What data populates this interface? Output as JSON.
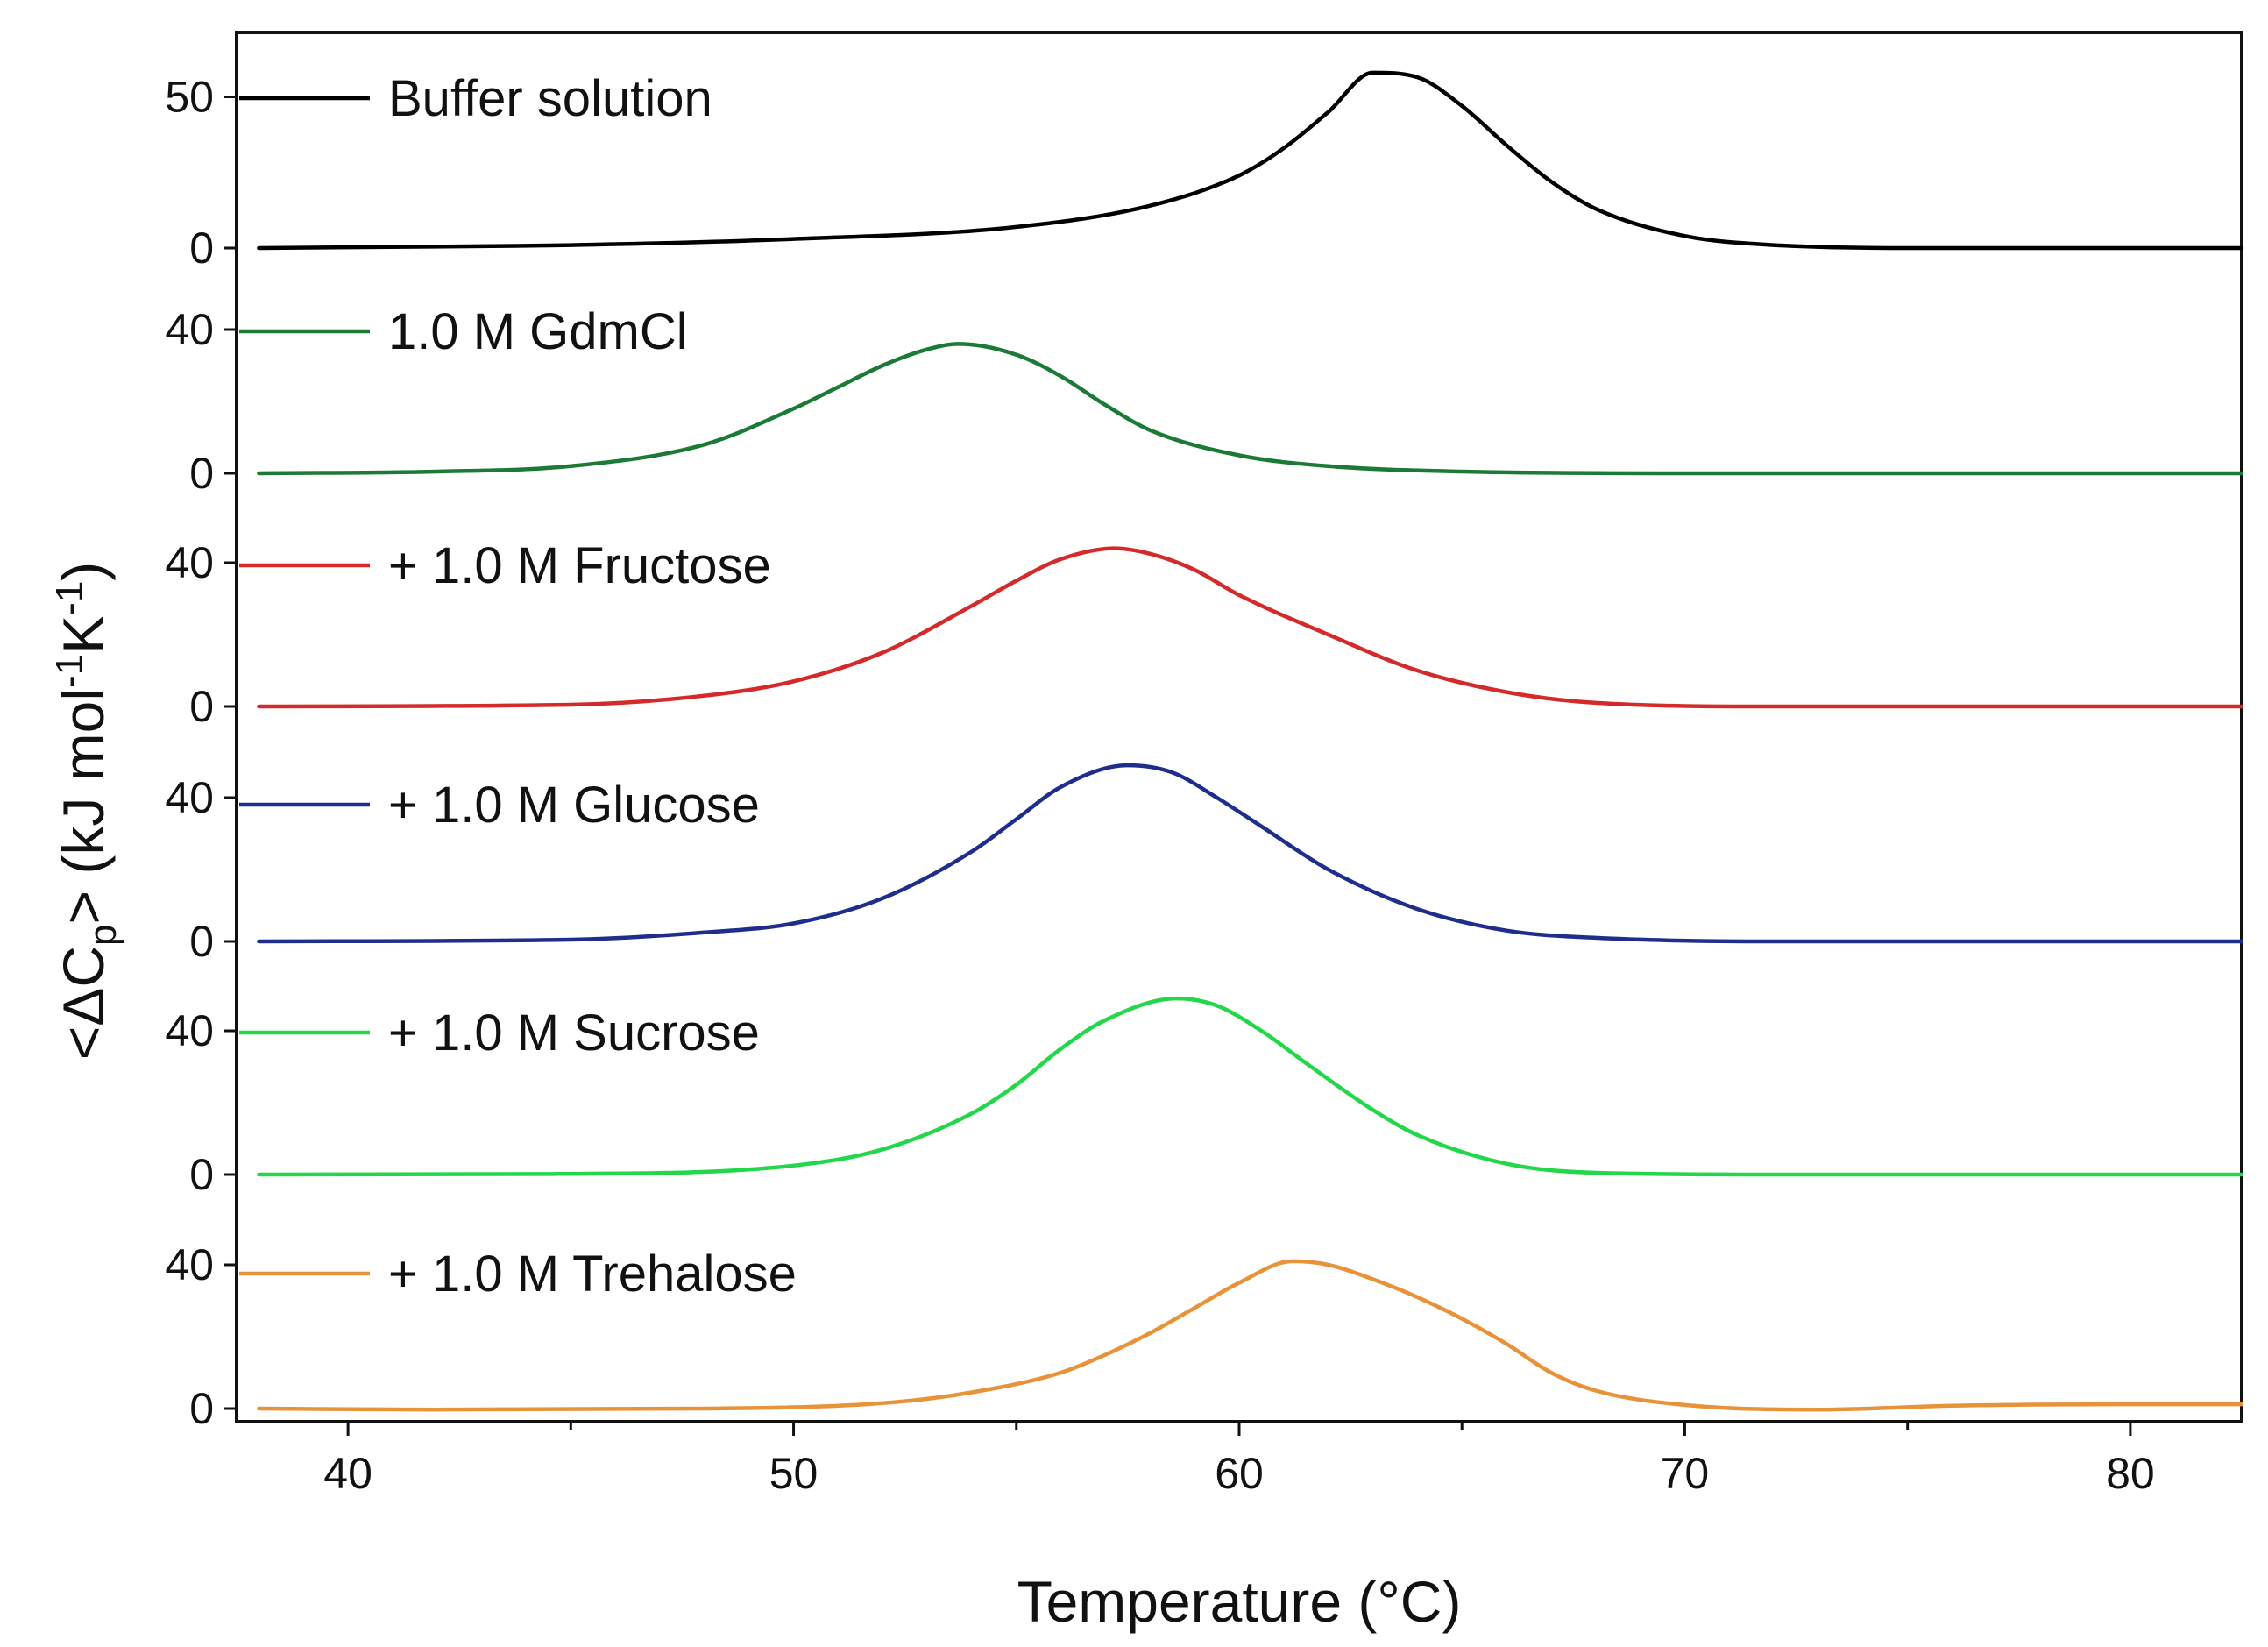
{
  "chart_data": {
    "type": "line",
    "title": "",
    "xlabel": "Temperature (°C)",
    "ylabel": "<ΔCp> (kJ mol-1K-1)",
    "ylabel_parts": {
      "open": "<ΔC",
      "sub": "p",
      "mid": "> (kJ mol",
      "sup1": "-1",
      "mid2": "K",
      "sup2": "-1",
      "close": ")"
    },
    "xlim": [
      37.5,
      82.5
    ],
    "x_ticks": [
      40,
      50,
      60,
      70,
      80
    ],
    "x_tick_labels": [
      "40",
      "50",
      "60",
      "70",
      "80"
    ],
    "grid": false,
    "legend_position": "left, inside each panel",
    "panels": [
      {
        "name": "Buffer solution",
        "label": "Buffer solution",
        "color": "#000000",
        "ylim": [
          0,
          60
        ],
        "y_ticks": [
          0,
          50
        ],
        "y_tick_labels": [
          "0",
          "50"
        ],
        "peak_temperature": 63.1,
        "peak_value": 59,
        "x": [
          38,
          45,
          50,
          55,
          58,
          60,
          61,
          62,
          63,
          64,
          65,
          66,
          67,
          68,
          70,
          72,
          75,
          80,
          82.5
        ],
        "y": [
          0,
          1.0,
          3.0,
          7.0,
          14.0,
          24.0,
          33.0,
          45.0,
          58.0,
          56.5,
          47.0,
          34.0,
          22.0,
          13.0,
          4.0,
          1.0,
          0,
          0,
          0
        ]
      },
      {
        "name": "1.0 M GdmCl",
        "label": "1.0 M GdmCl",
        "color": "#1b7a35",
        "ylim": [
          0,
          55
        ],
        "y_ticks": [
          0,
          40
        ],
        "y_tick_labels": [
          "0",
          "40"
        ],
        "peak_temperature": 53.7,
        "peak_value": 36,
        "x": [
          38,
          42,
          45,
          48,
          50,
          51,
          52,
          53,
          53.7,
          55,
          56,
          57,
          58,
          60,
          62,
          65,
          70,
          75,
          82.5
        ],
        "y": [
          0,
          0.5,
          2.0,
          8.0,
          18.0,
          24.0,
          30.0,
          34.5,
          36.0,
          33.0,
          27.0,
          19.0,
          12.0,
          5.0,
          2.0,
          0.5,
          0,
          0,
          0
        ]
      },
      {
        "name": "+ 1.0 M Fructose",
        "label": "+ 1.0 M Fructose",
        "color": "#d42a2a",
        "ylim": [
          0,
          55
        ],
        "y_ticks": [
          0,
          40
        ],
        "y_tick_labels": [
          "0",
          "40"
        ],
        "peak_temperature": 57.2,
        "peak_value": 44,
        "x": [
          38,
          45,
          48,
          50,
          52,
          54,
          55,
          56,
          57.2,
          58,
          59,
          60,
          62,
          64,
          66,
          68,
          72,
          78,
          82.5
        ],
        "y": [
          0,
          0.5,
          3.0,
          7.0,
          15.0,
          28.0,
          35.0,
          41.0,
          44.0,
          42.5,
          38.0,
          31.0,
          20.0,
          10.0,
          4.0,
          1.0,
          0,
          0,
          0
        ]
      },
      {
        "name": "+ 1.0 M Glucose",
        "label": "+ 1.0 M Glucose",
        "color": "#1f2e8c",
        "ylim": [
          0,
          55
        ],
        "y_ticks": [
          0,
          40
        ],
        "y_tick_labels": [
          "0",
          "40"
        ],
        "peak_temperature": 57.5,
        "peak_value": 49,
        "x": [
          38,
          45,
          48,
          50,
          52,
          54,
          55,
          56,
          57.5,
          58.5,
          59.5,
          60.5,
          62,
          64,
          66,
          68,
          72,
          78,
          82.5
        ],
        "y": [
          0,
          0.5,
          2.5,
          5.0,
          12.0,
          25.0,
          34.0,
          43.0,
          49.0,
          47.0,
          40.0,
          32.0,
          20.0,
          9.0,
          3.0,
          1.0,
          0,
          0,
          0
        ]
      },
      {
        "name": "+ 1.0 M Sucrose",
        "label": "+ 1.0 M Sucrose",
        "color": "#22d84a",
        "ylim": [
          0,
          55
        ],
        "y_ticks": [
          0,
          40
        ],
        "y_tick_labels": [
          "0",
          "40"
        ],
        "peak_temperature": 58.6,
        "peak_value": 49,
        "x": [
          38,
          45,
          50,
          52,
          54,
          55,
          56,
          57,
          58.6,
          59.5,
          60.5,
          61.5,
          63,
          64,
          66,
          68,
          72,
          78,
          82.5
        ],
        "y": [
          0,
          0.2,
          2.5,
          7.0,
          17.0,
          25.0,
          35.0,
          43.0,
          49.0,
          47.0,
          40.0,
          31.0,
          18.0,
          11.0,
          3.0,
          0.5,
          0,
          0,
          0
        ]
      },
      {
        "name": "+ 1.0 M Trehalose",
        "label": "+ 1.0 M Trehalose",
        "color": "#e8933a",
        "ylim": [
          0,
          55
        ],
        "y_ticks": [
          0,
          40
        ],
        "y_tick_labels": [
          "0",
          "40"
        ],
        "peak_temperature": 61.2,
        "peak_value": 41,
        "x": [
          38,
          42,
          48,
          52,
          54,
          56,
          57,
          58,
          59,
          60,
          61.2,
          62,
          63,
          64,
          65,
          66,
          67,
          68,
          70,
          73,
          76,
          80,
          82.5
        ],
        "y": [
          0,
          -0.3,
          0,
          1.5,
          4.5,
          10.0,
          15.0,
          21.0,
          28.0,
          35.0,
          41.0,
          40.0,
          36.0,
          31.0,
          25.0,
          18.0,
          10.0,
          5.0,
          1.0,
          -0.3,
          0.8,
          1.2,
          1.2
        ]
      }
    ]
  }
}
